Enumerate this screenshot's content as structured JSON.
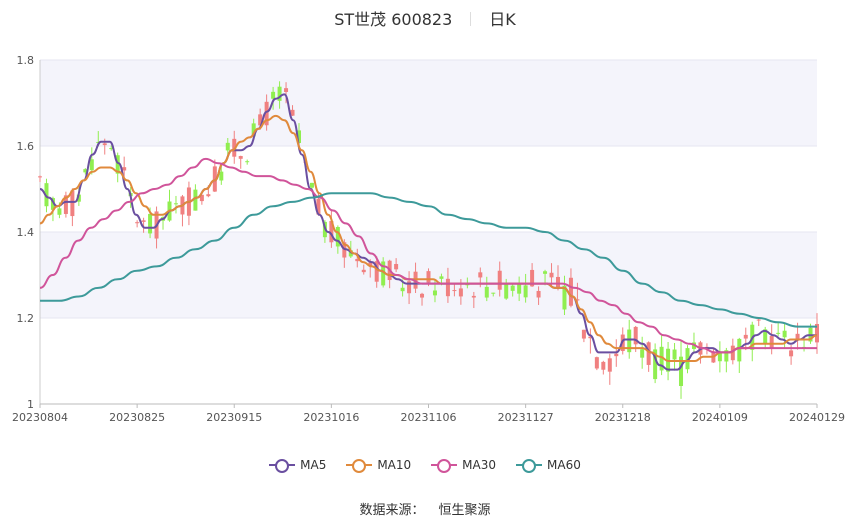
{
  "title": {
    "name": "ST世茂 600823",
    "period": "日K"
  },
  "source": {
    "label": "数据来源：",
    "value": "恒生聚源"
  },
  "colors": {
    "up": "#f08080",
    "down": "#90ee50",
    "band": "#f4f4fb",
    "grid": "#e6e6f0"
  },
  "legend": [
    {
      "name": "MA5",
      "color": "#6a4fa0"
    },
    {
      "name": "MA10",
      "color": "#e08a3c"
    },
    {
      "name": "MA30",
      "color": "#d0549a"
    },
    {
      "name": "MA60",
      "color": "#3d9a9a"
    }
  ],
  "chart_data": {
    "type": "candlestick",
    "ylim": [
      1.0,
      1.8
    ],
    "yticks": [
      "1",
      "1.2",
      "1.4",
      "1.6",
      "1.8"
    ],
    "xticks": [
      "20230804",
      "20230825",
      "20230915",
      "20231016",
      "20231106",
      "20231127",
      "20231218",
      "20240109",
      "20240129"
    ],
    "grid": true,
    "legend_position": "bottom",
    "candles_count": 121,
    "ma_series": [
      {
        "name": "MA5",
        "values": [
          1.5,
          1.48,
          1.46,
          1.47,
          1.47,
          1.52,
          1.58,
          1.61,
          1.61,
          1.56,
          1.5,
          1.44,
          1.41,
          1.41,
          1.43,
          1.45,
          1.46,
          1.47,
          1.48,
          1.5,
          1.52,
          1.56,
          1.59,
          1.59,
          1.6,
          1.64,
          1.68,
          1.71,
          1.72,
          1.66,
          1.58,
          1.5,
          1.44,
          1.4,
          1.38,
          1.36,
          1.35,
          1.34,
          1.33,
          1.31,
          1.3,
          1.29,
          1.28,
          1.28,
          1.28,
          1.28,
          1.28,
          1.28,
          1.28,
          1.28,
          1.28,
          1.28,
          1.28,
          1.28,
          1.28,
          1.28,
          1.28,
          1.28,
          1.28,
          1.27,
          1.27,
          1.25,
          1.21,
          1.16,
          1.12,
          1.12,
          1.12,
          1.15,
          1.15,
          1.14,
          1.12,
          1.09,
          1.08,
          1.08,
          1.1,
          1.12,
          1.13,
          1.13,
          1.12,
          1.12,
          1.13,
          1.14,
          1.16,
          1.17,
          1.16,
          1.15,
          1.14,
          1.15,
          1.16,
          1.16
        ]
      },
      {
        "name": "MA10",
        "values": [
          1.42,
          1.44,
          1.46,
          1.48,
          1.5,
          1.52,
          1.54,
          1.55,
          1.55,
          1.54,
          1.52,
          1.49,
          1.46,
          1.44,
          1.44,
          1.45,
          1.46,
          1.47,
          1.48,
          1.5,
          1.52,
          1.56,
          1.59,
          1.61,
          1.62,
          1.64,
          1.66,
          1.67,
          1.66,
          1.63,
          1.59,
          1.54,
          1.49,
          1.44,
          1.4,
          1.37,
          1.35,
          1.33,
          1.32,
          1.31,
          1.3,
          1.3,
          1.29,
          1.29,
          1.29,
          1.29,
          1.28,
          1.28,
          1.28,
          1.28,
          1.28,
          1.28,
          1.28,
          1.28,
          1.28,
          1.28,
          1.28,
          1.28,
          1.28,
          1.27,
          1.27,
          1.25,
          1.22,
          1.19,
          1.16,
          1.14,
          1.13,
          1.13,
          1.13,
          1.13,
          1.12,
          1.11,
          1.1,
          1.1,
          1.1,
          1.1,
          1.11,
          1.11,
          1.12,
          1.12,
          1.13,
          1.13,
          1.14,
          1.14,
          1.14,
          1.14,
          1.15,
          1.15,
          1.15,
          1.16
        ]
      },
      {
        "name": "MA30",
        "values": [
          1.27,
          1.3,
          1.34,
          1.38,
          1.41,
          1.43,
          1.45,
          1.47,
          1.49,
          1.5,
          1.51,
          1.53,
          1.55,
          1.57,
          1.56,
          1.55,
          1.54,
          1.53,
          1.53,
          1.52,
          1.51,
          1.5,
          1.48,
          1.45,
          1.42,
          1.39,
          1.35,
          1.32,
          1.3,
          1.29,
          1.28,
          1.28,
          1.28,
          1.28,
          1.28,
          1.28,
          1.28,
          1.28,
          1.28,
          1.28,
          1.28,
          1.28,
          1.27,
          1.26,
          1.24,
          1.23,
          1.21,
          1.19,
          1.18,
          1.16,
          1.15,
          1.14,
          1.13,
          1.12,
          1.12,
          1.13,
          1.13,
          1.13,
          1.13,
          1.13,
          1.13,
          1.13
        ]
      },
      {
        "name": "MA60",
        "values": [
          1.24,
          1.24,
          1.25,
          1.27,
          1.29,
          1.31,
          1.32,
          1.34,
          1.36,
          1.38,
          1.41,
          1.44,
          1.46,
          1.47,
          1.48,
          1.49,
          1.49,
          1.49,
          1.48,
          1.47,
          1.46,
          1.44,
          1.43,
          1.42,
          1.41,
          1.41,
          1.4,
          1.38,
          1.36,
          1.34,
          1.31,
          1.28,
          1.26,
          1.24,
          1.23,
          1.22,
          1.21,
          1.2,
          1.19,
          1.18,
          1.18
        ]
      }
    ]
  }
}
